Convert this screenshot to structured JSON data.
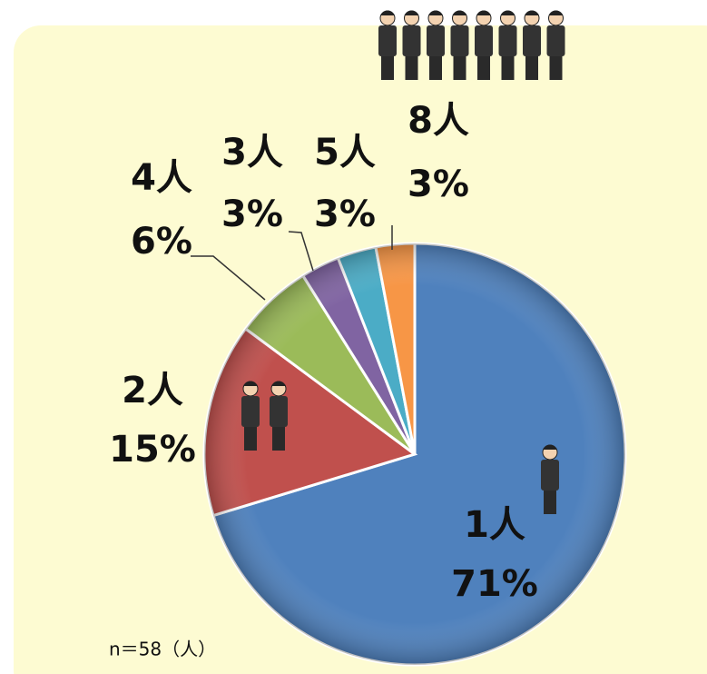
{
  "chart_data": {
    "type": "pie",
    "categories": [
      "1人",
      "2人",
      "4人",
      "3人",
      "5人",
      "8人"
    ],
    "values": [
      71,
      15,
      6,
      3,
      3,
      3
    ],
    "value_labels": [
      "71%",
      "15%",
      "6%",
      "3%",
      "3%",
      "3%"
    ],
    "colors": [
      "#4f81bd",
      "#c0504d",
      "#9bbb59",
      "#8064a2",
      "#4bacc6",
      "#f79646"
    ],
    "note": "n＝58（人）"
  }
}
